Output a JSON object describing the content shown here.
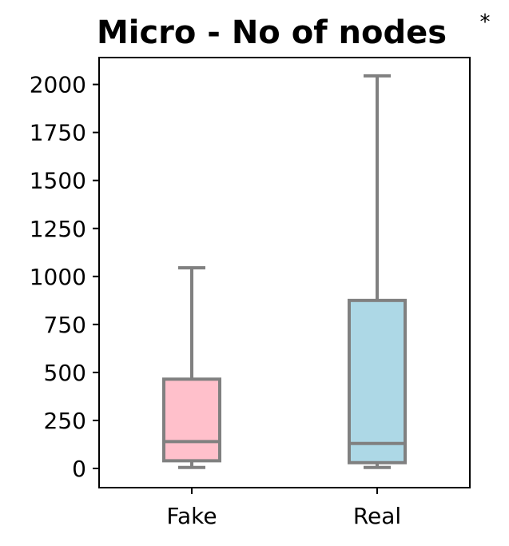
{
  "chart_data": {
    "type": "box",
    "title": "Micro - No of nodes",
    "significance_marker": "*",
    "xlabel": "",
    "ylabel": "",
    "ylim": [
      -100,
      2140
    ],
    "yticks": [
      0,
      250,
      500,
      750,
      1000,
      1250,
      1500,
      1750,
      2000
    ],
    "grid": false,
    "categories": [
      "Fake",
      "Real"
    ],
    "boxes": [
      {
        "label": "Fake",
        "whisker_low": 5,
        "q1": 40,
        "median": 140,
        "q3": 465,
        "whisker_high": 1045,
        "fill": "#ffc0cb"
      },
      {
        "label": "Real",
        "whisker_low": 5,
        "q1": 30,
        "median": 130,
        "q3": 875,
        "whisker_high": 2045,
        "fill": "#add8e6"
      }
    ],
    "line_color": "#808080"
  }
}
